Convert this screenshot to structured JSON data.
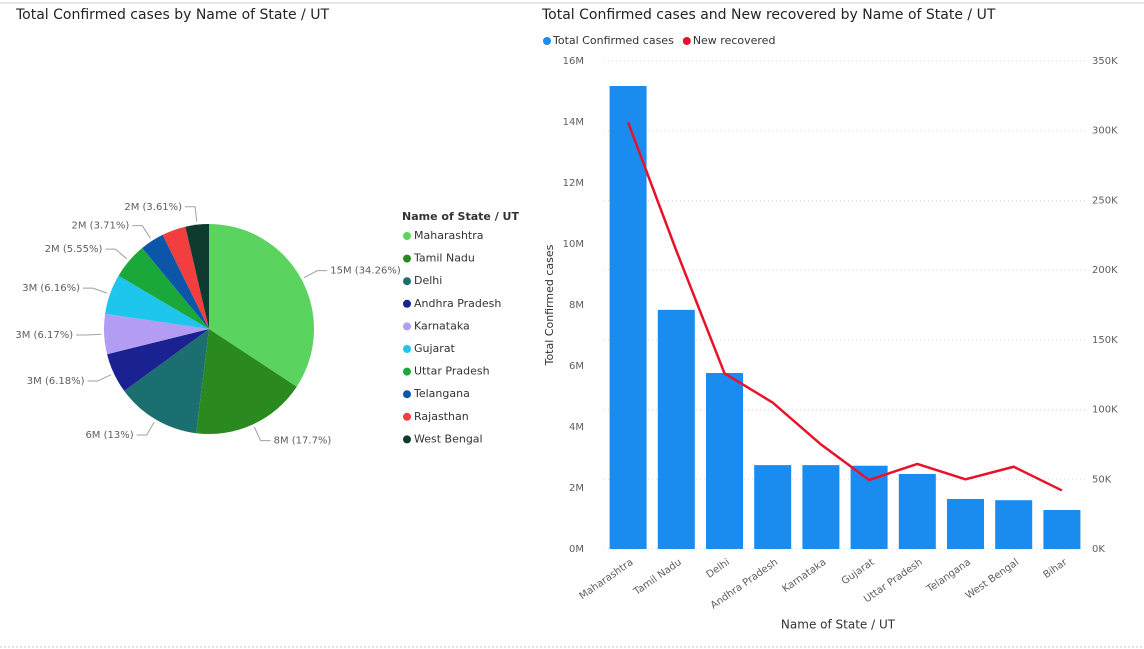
{
  "chart_data": [
    {
      "type": "pie",
      "title": "Total Confirmed cases by Name of State / UT",
      "legend_title": "Name of State / UT",
      "categories": [
        "Maharashtra",
        "Tamil Nadu",
        "Delhi",
        "Andhra Pradesh",
        "Karnataka",
        "Gujarat",
        "Uttar Pradesh",
        "Telangana",
        "Rajasthan",
        "West Bengal"
      ],
      "values": [
        34.26,
        17.7,
        13,
        6.18,
        6.17,
        6.16,
        5.55,
        3.71,
        3.66,
        3.61
      ],
      "value_labels": [
        "15M (34.26%)",
        "8M (17.7%)",
        "6M (13%)",
        "3M (6.18%)",
        "3M (6.17%)",
        "3M (6.16%)",
        "2M (5.55%)",
        "2M (3.71%)",
        null,
        "2M (3.61%)"
      ],
      "colors": [
        "#5ad45f",
        "#2a8a1f",
        "#1b6f70",
        "#1a2190",
        "#b39cf4",
        "#1ec6ee",
        "#1ba83a",
        "#0b56a8",
        "#f23e3e",
        "#0e3a2f"
      ]
    },
    {
      "type": "bar",
      "title": "Total Confirmed cases and New recovered by Name of State / UT",
      "categories": [
        "Maharashtra",
        "Tamil Nadu",
        "Delhi",
        "Andhra Pradesh",
        "Karnataka",
        "Gujarat",
        "Uttar Pradesh",
        "Telangana",
        "West Bengal",
        "Bihar"
      ],
      "series": [
        {
          "name": "Total Confirmed cases",
          "color": "#1a8cf0",
          "values": [
            15180000,
            7840000,
            5770000,
            2750000,
            2750000,
            2730000,
            2460000,
            1640000,
            1600000,
            1280000
          ]
        },
        {
          "name": "New recovered",
          "color": "#e8122a",
          "type": "line",
          "axis": "y2",
          "values": [
            306000,
            214000,
            126000,
            105000,
            75000,
            49500,
            61000,
            50000,
            59000,
            42000
          ]
        }
      ],
      "xlabel": "Name of State / UT",
      "ylabel": "Total Confirmed cases",
      "ylim": [
        0,
        16000000
      ],
      "yticks": [
        {
          "value": 0,
          "label": "0M"
        },
        {
          "value": 2000000,
          "label": "2M"
        },
        {
          "value": 4000000,
          "label": "4M"
        },
        {
          "value": 6000000,
          "label": "6M"
        },
        {
          "value": 8000000,
          "label": "8M"
        },
        {
          "value": 10000000,
          "label": "10M"
        },
        {
          "value": 12000000,
          "label": "12M"
        },
        {
          "value": 14000000,
          "label": "14M"
        },
        {
          "value": 16000000,
          "label": "16M"
        }
      ],
      "y2lim": [
        0,
        350000
      ],
      "y2ticks": [
        {
          "value": 0,
          "label": "0K"
        },
        {
          "value": 50000,
          "label": "50K"
        },
        {
          "value": 100000,
          "label": "100K"
        },
        {
          "value": 150000,
          "label": "150K"
        },
        {
          "value": 200000,
          "label": "200K"
        },
        {
          "value": 250000,
          "label": "250K"
        },
        {
          "value": 300000,
          "label": "300K"
        },
        {
          "value": 350000,
          "label": "350K"
        }
      ],
      "grid": true
    }
  ]
}
